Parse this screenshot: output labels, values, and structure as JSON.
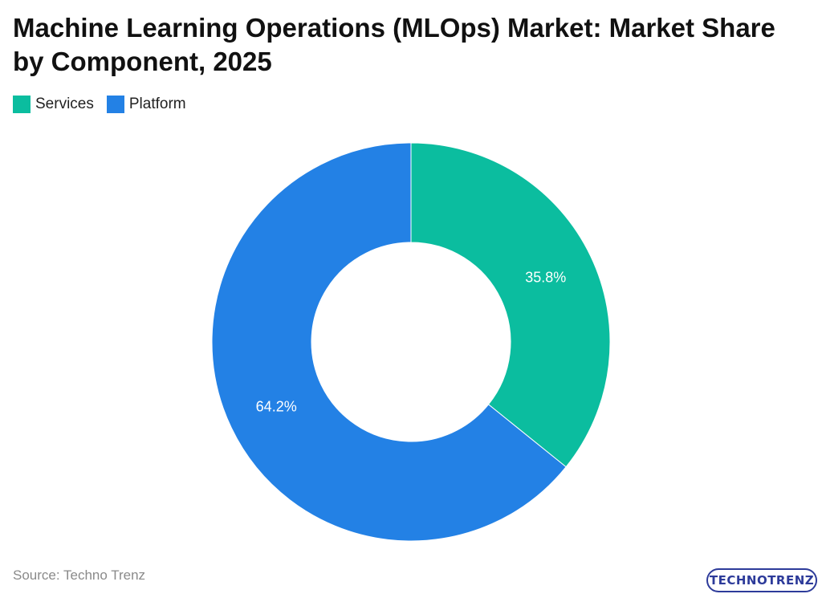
{
  "title": "Machine Learning Operations (MLOps) Market: Market Share by Component, 2025",
  "source": "Source: Techno Trenz",
  "logo_text": "TECHNOTRENZ",
  "chart_data": {
    "type": "pie",
    "donut": true,
    "title": "Machine Learning Operations (MLOps) Market: Market Share by Component, 2025",
    "legend_position": "top-left",
    "categories": [
      "Services",
      "Platform"
    ],
    "values": [
      35.8,
      64.2
    ],
    "labels": [
      "35.8%",
      "64.2%"
    ],
    "colors": [
      "#0BBD9F",
      "#2381E5"
    ]
  }
}
